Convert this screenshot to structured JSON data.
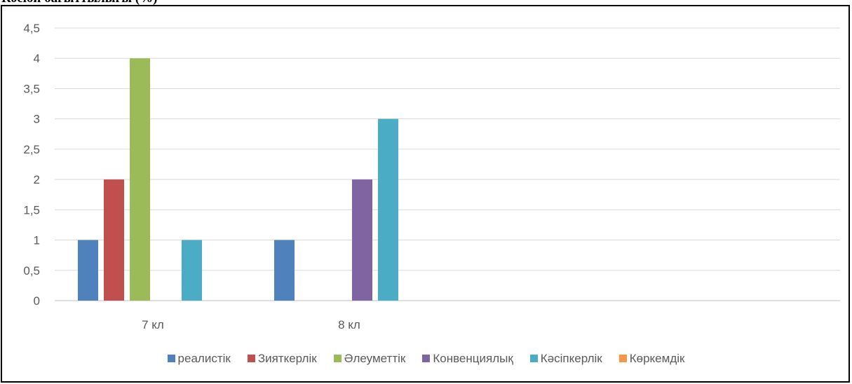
{
  "header_text": "Кәсіби бағыттылығы (%)",
  "chart_data": {
    "type": "bar",
    "title": "",
    "xlabel": "",
    "ylabel": "",
    "ylim": [
      0,
      4.5
    ],
    "y_ticks": [
      "0",
      "0,5",
      "1",
      "1,5",
      "2",
      "2,5",
      "3",
      "3,5",
      "4",
      "4,5"
    ],
    "categories": [
      "7 кл",
      "8 кл",
      "",
      ""
    ],
    "grid": true,
    "legend_position": "bottom",
    "series": [
      {
        "name": "реалистік",
        "color": "#4f81bd",
        "values": [
          1,
          1,
          null,
          null
        ]
      },
      {
        "name": "Зияткерлік",
        "color": "#c0504d",
        "values": [
          2,
          0,
          null,
          null
        ]
      },
      {
        "name": "Әлеуметтік",
        "color": "#9bbb59",
        "values": [
          4,
          0,
          null,
          null
        ]
      },
      {
        "name": "Конвенциялық",
        "color": "#8064a2",
        "values": [
          0,
          2,
          null,
          null
        ]
      },
      {
        "name": "Кәсіпкерлік",
        "color": "#4bacc6",
        "values": [
          1,
          3,
          null,
          null
        ]
      },
      {
        "name": "Көркемдік",
        "color": "#f79646",
        "values": [
          0,
          0,
          null,
          null
        ]
      }
    ]
  }
}
